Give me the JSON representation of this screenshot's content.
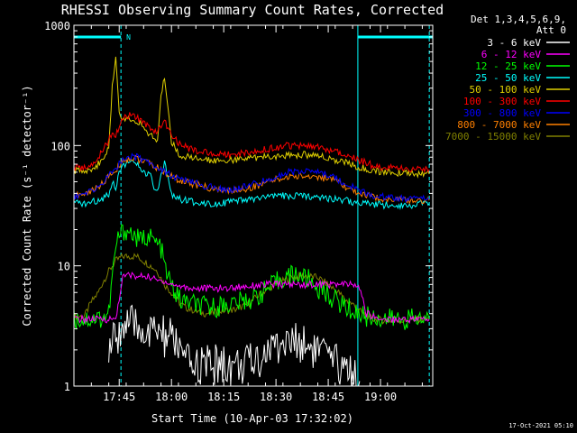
{
  "chart_data": {
    "type": "line",
    "title": "RHESSI Observing Summary Count Rates, Corrected",
    "ylabel": "Corrected Count Rate (s⁻¹ detector⁻¹)",
    "xlabel": "Start Time (10-Apr-03 17:32:02)",
    "ylog": true,
    "ylim": [
      1,
      1000
    ],
    "xlim_minutes": [
      0,
      103
    ],
    "y_ticks": [
      {
        "value": 1,
        "label": "1"
      },
      {
        "value": 10,
        "label": "10"
      },
      {
        "value": 100,
        "label": "100"
      },
      {
        "value": 1000,
        "label": "1000"
      }
    ],
    "x_ticks": [
      {
        "minute": 13,
        "label": "17:45"
      },
      {
        "minute": 28,
        "label": "18:00"
      },
      {
        "minute": 43,
        "label": "18:15"
      },
      {
        "minute": 58,
        "label": "18:30"
      },
      {
        "minute": 73,
        "label": "18:45"
      },
      {
        "minute": 88,
        "label": "19:00"
      }
    ],
    "legend": {
      "placement": "right",
      "header": [
        "Det 1,3,4,5,6,9,",
        "Att 0"
      ],
      "entries": [
        {
          "label": "3 - 6 keV",
          "color": "#ffffff"
        },
        {
          "label": "6 - 12 keV",
          "color": "#ff00ff"
        },
        {
          "label": "12 - 25 keV",
          "color": "#00ff00"
        },
        {
          "label": "25 - 50 keV",
          "color": "#00ffff"
        },
        {
          "label": "50 - 100 keV",
          "color": "#e0d000"
        },
        {
          "label": "100 - 300 keV",
          "color": "#ff0000"
        },
        {
          "label": "300 - 800 keV",
          "color": "#0000ff"
        },
        {
          "label": "800 - 7000 keV",
          "color": "#ff8000"
        },
        {
          "label": "7000 - 15000 keV",
          "color": "#808000"
        }
      ]
    },
    "annotations": {
      "night_marker": "N",
      "night_intervals_minutes": [
        [
          0,
          13.5
        ],
        [
          81.5,
          103
        ]
      ],
      "vertical_lines_minutes": [
        13.5,
        81.5,
        102
      ]
    },
    "series": [
      {
        "label": "7000 - 15000 keV",
        "color": "#808000",
        "points": [
          [
            0,
            3.8
          ],
          [
            3,
            3.8
          ],
          [
            5,
            5
          ],
          [
            7,
            6
          ],
          [
            8,
            7
          ],
          [
            10,
            9
          ],
          [
            12,
            11
          ],
          [
            14,
            12
          ],
          [
            16,
            12
          ],
          [
            18,
            12
          ],
          [
            20,
            11
          ],
          [
            22,
            10
          ],
          [
            24,
            9
          ],
          [
            26,
            7
          ],
          [
            28,
            6
          ],
          [
            30,
            5
          ],
          [
            32,
            4.5
          ],
          [
            35,
            4.2
          ],
          [
            38,
            4
          ],
          [
            42,
            4.2
          ],
          [
            46,
            4.3
          ],
          [
            50,
            4.8
          ],
          [
            54,
            6
          ],
          [
            58,
            7
          ],
          [
            62,
            8
          ],
          [
            66,
            8.3
          ],
          [
            70,
            8
          ],
          [
            73,
            7
          ],
          [
            76,
            6
          ],
          [
            78,
            5.2
          ],
          [
            80,
            4.8
          ],
          [
            83,
            4
          ],
          [
            86,
            3.6
          ],
          [
            90,
            3.5
          ],
          [
            95,
            3.5
          ],
          [
            98,
            3.6
          ],
          [
            102,
            3.6
          ]
        ]
      },
      {
        "label": "12 - 25 keV",
        "color": "#00ff00",
        "points": [
          [
            0,
            3.6
          ],
          [
            4,
            3.6
          ],
          [
            8,
            3.7
          ],
          [
            10,
            4
          ],
          [
            11,
            8
          ],
          [
            12,
            14
          ],
          [
            13,
            18
          ],
          [
            15,
            20
          ],
          [
            17,
            18
          ],
          [
            19,
            16
          ],
          [
            21,
            18
          ],
          [
            23,
            16
          ],
          [
            25,
            14
          ],
          [
            26,
            10
          ],
          [
            27,
            8
          ],
          [
            29,
            6
          ],
          [
            31,
            5
          ],
          [
            33,
            5
          ],
          [
            36,
            4.6
          ],
          [
            40,
            4.5
          ],
          [
            44,
            4.8
          ],
          [
            48,
            5
          ],
          [
            52,
            5.5
          ],
          [
            56,
            6.5
          ],
          [
            60,
            8
          ],
          [
            64,
            8.5
          ],
          [
            66,
            8
          ],
          [
            68,
            7.5
          ],
          [
            70,
            6.5
          ],
          [
            72,
            6
          ],
          [
            76,
            5
          ],
          [
            80,
            4.2
          ],
          [
            84,
            3.8
          ],
          [
            90,
            3.6
          ],
          [
            96,
            3.6
          ],
          [
            102,
            3.6
          ]
        ]
      },
      {
        "label": "6 - 12 keV",
        "color": "#ff00ff",
        "points": [
          [
            0,
            3.6
          ],
          [
            10,
            3.6
          ],
          [
            12,
            3.6
          ],
          [
            14,
            8
          ],
          [
            16,
            8.5
          ],
          [
            18,
            8
          ],
          [
            20,
            8.3
          ],
          [
            22,
            8
          ],
          [
            24,
            7.5
          ],
          [
            26,
            7.5
          ],
          [
            28,
            7
          ],
          [
            30,
            6.8
          ],
          [
            34,
            6.5
          ],
          [
            38,
            6.5
          ],
          [
            44,
            6.5
          ],
          [
            50,
            6.8
          ],
          [
            56,
            7
          ],
          [
            60,
            7
          ],
          [
            64,
            7
          ],
          [
            68,
            7
          ],
          [
            72,
            7
          ],
          [
            76,
            7
          ],
          [
            80,
            7
          ],
          [
            82,
            6.5
          ],
          [
            84,
            4
          ],
          [
            88,
            3.6
          ],
          [
            96,
            3.6
          ],
          [
            102,
            3.6
          ]
        ]
      },
      {
        "label": "3 - 6 keV",
        "color": "#ffffff",
        "points": [
          [
            10,
            2
          ],
          [
            12,
            2.5
          ],
          [
            14,
            3.2
          ],
          [
            16,
            3.2
          ],
          [
            18,
            3
          ],
          [
            20,
            3
          ],
          [
            22,
            2.6
          ],
          [
            24,
            3
          ],
          [
            26,
            2.5
          ],
          [
            28,
            2.5
          ],
          [
            30,
            2.2
          ],
          [
            32,
            1.5
          ],
          [
            34,
            1.5
          ],
          [
            38,
            1.5
          ],
          [
            42,
            1.5
          ],
          [
            46,
            1.5
          ],
          [
            50,
            1.5
          ],
          [
            54,
            1.8
          ],
          [
            58,
            2.2
          ],
          [
            62,
            2.3
          ],
          [
            66,
            2.3
          ],
          [
            70,
            2
          ],
          [
            72,
            1.8
          ],
          [
            74,
            1.5
          ],
          [
            78,
            1.5
          ],
          [
            80,
            1.3
          ],
          [
            82,
            1.1
          ]
        ]
      },
      {
        "label": "25 - 50 keV",
        "color": "#00ffff",
        "points": [
          [
            0,
            33
          ],
          [
            4,
            33
          ],
          [
            8,
            36
          ],
          [
            10,
            40
          ],
          [
            11,
            50
          ],
          [
            12,
            45
          ],
          [
            13,
            60
          ],
          [
            14,
            70
          ],
          [
            16,
            72
          ],
          [
            18,
            70
          ],
          [
            20,
            60
          ],
          [
            22,
            55
          ],
          [
            23,
            45
          ],
          [
            24,
            40
          ],
          [
            25,
            55
          ],
          [
            26,
            70
          ],
          [
            27,
            55
          ],
          [
            28,
            40
          ],
          [
            30,
            36
          ],
          [
            34,
            34
          ],
          [
            40,
            33
          ],
          [
            46,
            34
          ],
          [
            52,
            36
          ],
          [
            58,
            38
          ],
          [
            64,
            38
          ],
          [
            70,
            38
          ],
          [
            74,
            36
          ],
          [
            78,
            35
          ],
          [
            82,
            33
          ],
          [
            90,
            32
          ],
          [
            96,
            32
          ],
          [
            102,
            33
          ]
        ]
      },
      {
        "label": "800 - 7000 keV",
        "color": "#ff8000",
        "points": [
          [
            0,
            38
          ],
          [
            4,
            40
          ],
          [
            8,
            48
          ],
          [
            10,
            55
          ],
          [
            12,
            62
          ],
          [
            14,
            75
          ],
          [
            16,
            78
          ],
          [
            18,
            78
          ],
          [
            20,
            74
          ],
          [
            22,
            70
          ],
          [
            24,
            65
          ],
          [
            26,
            60
          ],
          [
            28,
            55
          ],
          [
            30,
            52
          ],
          [
            34,
            48
          ],
          [
            38,
            45
          ],
          [
            42,
            42
          ],
          [
            46,
            42
          ],
          [
            50,
            44
          ],
          [
            54,
            48
          ],
          [
            58,
            52
          ],
          [
            62,
            55
          ],
          [
            66,
            56
          ],
          [
            70,
            55
          ],
          [
            74,
            52
          ],
          [
            78,
            45
          ],
          [
            82,
            40
          ],
          [
            86,
            37
          ],
          [
            90,
            36
          ],
          [
            96,
            35
          ],
          [
            102,
            35
          ]
        ]
      },
      {
        "label": "300 - 800 keV",
        "color": "#0000ff",
        "points": [
          [
            0,
            38
          ],
          [
            4,
            40
          ],
          [
            8,
            48
          ],
          [
            10,
            56
          ],
          [
            12,
            64
          ],
          [
            14,
            78
          ],
          [
            16,
            80
          ],
          [
            18,
            80
          ],
          [
            20,
            76
          ],
          [
            22,
            72
          ],
          [
            24,
            66
          ],
          [
            26,
            61
          ],
          [
            28,
            56
          ],
          [
            30,
            53
          ],
          [
            34,
            49
          ],
          [
            38,
            46
          ],
          [
            42,
            43
          ],
          [
            46,
            43
          ],
          [
            50,
            46
          ],
          [
            54,
            50
          ],
          [
            58,
            55
          ],
          [
            62,
            60
          ],
          [
            66,
            62
          ],
          [
            70,
            60
          ],
          [
            74,
            56
          ],
          [
            78,
            48
          ],
          [
            82,
            42
          ],
          [
            86,
            38
          ],
          [
            90,
            37
          ],
          [
            96,
            36
          ],
          [
            102,
            36
          ]
        ]
      },
      {
        "label": "50 - 100 keV",
        "color": "#e0d000",
        "points": [
          [
            0,
            62
          ],
          [
            4,
            63
          ],
          [
            6,
            65
          ],
          [
            8,
            75
          ],
          [
            10,
            100
          ],
          [
            11,
            300
          ],
          [
            12,
            550
          ],
          [
            13,
            200
          ],
          [
            14,
            160
          ],
          [
            16,
            170
          ],
          [
            18,
            160
          ],
          [
            20,
            140
          ],
          [
            22,
            120
          ],
          [
            24,
            110
          ],
          [
            25,
            250
          ],
          [
            26,
            380
          ],
          [
            27,
            200
          ],
          [
            28,
            110
          ],
          [
            30,
            85
          ],
          [
            34,
            78
          ],
          [
            38,
            76
          ],
          [
            42,
            76
          ],
          [
            46,
            76
          ],
          [
            50,
            78
          ],
          [
            54,
            80
          ],
          [
            58,
            82
          ],
          [
            62,
            84
          ],
          [
            66,
            84
          ],
          [
            70,
            82
          ],
          [
            74,
            78
          ],
          [
            78,
            72
          ],
          [
            82,
            66
          ],
          [
            86,
            62
          ],
          [
            90,
            60
          ],
          [
            96,
            59
          ],
          [
            102,
            58
          ]
        ]
      },
      {
        "label": "100 - 300 keV",
        "color": "#ff0000",
        "points": [
          [
            0,
            65
          ],
          [
            4,
            66
          ],
          [
            6,
            70
          ],
          [
            8,
            90
          ],
          [
            10,
            110
          ],
          [
            11,
            130
          ],
          [
            12,
            120
          ],
          [
            13,
            140
          ],
          [
            14,
            165
          ],
          [
            16,
            180
          ],
          [
            18,
            170
          ],
          [
            20,
            155
          ],
          [
            22,
            140
          ],
          [
            24,
            130
          ],
          [
            25,
            150
          ],
          [
            26,
            160
          ],
          [
            27,
            135
          ],
          [
            28,
            120
          ],
          [
            30,
            105
          ],
          [
            34,
            92
          ],
          [
            38,
            88
          ],
          [
            42,
            85
          ],
          [
            46,
            85
          ],
          [
            50,
            88
          ],
          [
            54,
            92
          ],
          [
            58,
            96
          ],
          [
            62,
            100
          ],
          [
            66,
            100
          ],
          [
            70,
            96
          ],
          [
            74,
            92
          ],
          [
            78,
            86
          ],
          [
            82,
            75
          ],
          [
            86,
            68
          ],
          [
            90,
            65
          ],
          [
            96,
            64
          ],
          [
            102,
            63
          ]
        ]
      }
    ]
  },
  "footer": {
    "timestamp": "17-Oct-2021 05:10"
  }
}
